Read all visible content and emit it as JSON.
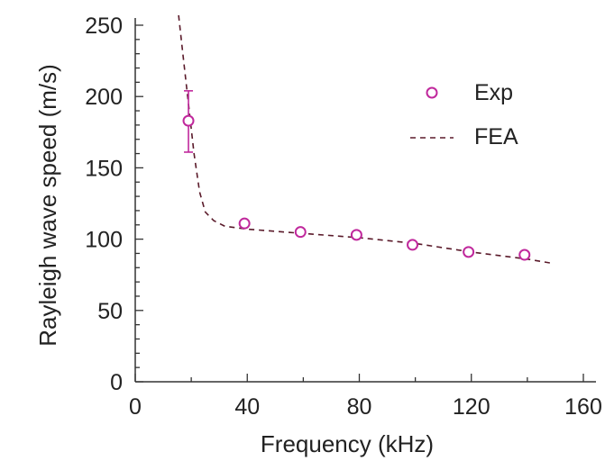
{
  "chart_data": {
    "type": "scatter",
    "xlabel": "Frequency (kHz)",
    "ylabel": "Rayleigh wave speed (m/s)",
    "xlim": [
      0,
      160
    ],
    "ylim": [
      0,
      250
    ],
    "x_ticks": [
      "0",
      "40",
      "80",
      "120",
      "160"
    ],
    "y_ticks": [
      "0",
      "50",
      "100",
      "150",
      "200",
      "250"
    ],
    "grid": false,
    "legend_position": "top-right",
    "colors": {
      "exp": "#c0289c",
      "fea": "#5a1a2a",
      "axis": "#333333"
    },
    "series": [
      {
        "name": "Exp",
        "kind": "scatter",
        "marker": "open-circle",
        "points": [
          {
            "x": 19,
            "y": 183,
            "err_low": 161,
            "err_high": 204
          },
          {
            "x": 39,
            "y": 111
          },
          {
            "x": 59,
            "y": 105
          },
          {
            "x": 79,
            "y": 103
          },
          {
            "x": 99,
            "y": 96
          },
          {
            "x": 119,
            "y": 91
          },
          {
            "x": 139,
            "y": 89
          }
        ]
      },
      {
        "name": "FEA",
        "kind": "line",
        "style": "dashed",
        "points": [
          {
            "x": 15.5,
            "y": 257
          },
          {
            "x": 17,
            "y": 230
          },
          {
            "x": 19,
            "y": 195
          },
          {
            "x": 21,
            "y": 160
          },
          {
            "x": 23,
            "y": 133
          },
          {
            "x": 25,
            "y": 119
          },
          {
            "x": 28,
            "y": 113
          },
          {
            "x": 32,
            "y": 109
          },
          {
            "x": 40,
            "y": 107
          },
          {
            "x": 60,
            "y": 104
          },
          {
            "x": 80,
            "y": 101
          },
          {
            "x": 100,
            "y": 97
          },
          {
            "x": 120,
            "y": 91
          },
          {
            "x": 140,
            "y": 86
          },
          {
            "x": 149,
            "y": 83
          }
        ]
      }
    ]
  }
}
